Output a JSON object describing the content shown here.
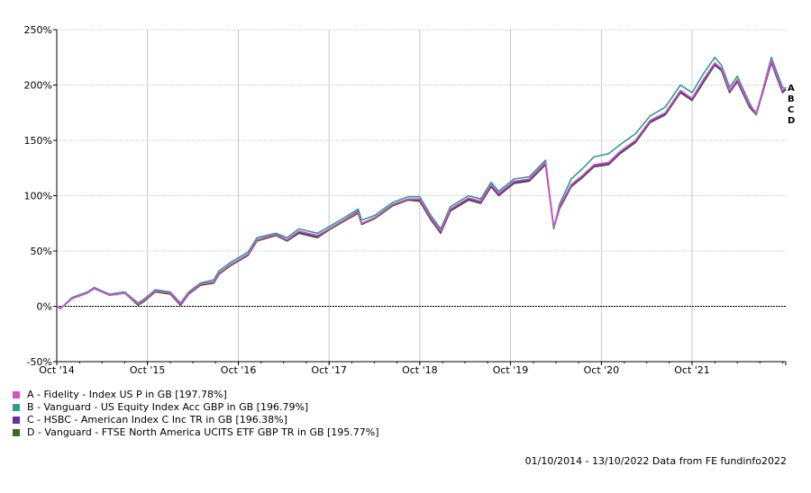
{
  "chart_data": {
    "type": "line",
    "title": "",
    "xlabel": "",
    "ylabel": "",
    "ylim": [
      -50,
      250
    ],
    "y_ticks": [
      -50,
      0,
      50,
      100,
      150,
      200,
      250
    ],
    "y_tick_labels": [
      "-50%",
      "0%",
      "50%",
      "100%",
      "150%",
      "200%",
      "250%"
    ],
    "x_ticks": [
      "2014-10-01",
      "2015-10-01",
      "2016-10-01",
      "2017-10-01",
      "2018-10-01",
      "2019-10-01",
      "2020-10-01",
      "2021-10-01"
    ],
    "x_tick_labels": [
      "Oct '14",
      "Oct '15",
      "Oct '16",
      "Oct '17",
      "Oct '18",
      "Oct '19",
      "Oct '20",
      "Oct '21"
    ],
    "xlim": [
      "2014-10-01",
      "2022-10-13"
    ],
    "grid": true,
    "zero_line": true,
    "legend_position": "bottom-left",
    "series": [
      {
        "name": "A - Fidelity - Index US P in GB [197.78%]",
        "label": "A",
        "color": "#d94fc9",
        "x": [
          "2014-10-01",
          "2014-10-16",
          "2014-12-01",
          "2015-02-01",
          "2015-03-01",
          "2015-05-01",
          "2015-07-01",
          "2015-08-24",
          "2015-09-15",
          "2015-11-01",
          "2016-01-01",
          "2016-02-11",
          "2016-03-15",
          "2016-05-01",
          "2016-06-24",
          "2016-07-15",
          "2016-09-01",
          "2016-11-09",
          "2016-12-15",
          "2017-03-01",
          "2017-04-15",
          "2017-06-01",
          "2017-08-15",
          "2017-10-01",
          "2017-12-01",
          "2018-01-26",
          "2018-02-09",
          "2018-04-01",
          "2018-06-15",
          "2018-08-15",
          "2018-10-01",
          "2018-11-15",
          "2018-12-24",
          "2019-02-01",
          "2019-04-15",
          "2019-06-03",
          "2019-07-15",
          "2019-08-15",
          "2019-10-15",
          "2019-12-15",
          "2020-02-19",
          "2020-03-23",
          "2020-04-15",
          "2020-06-01",
          "2020-07-15",
          "2020-09-01",
          "2020-10-30",
          "2020-12-15",
          "2021-02-15",
          "2021-04-15",
          "2021-06-15",
          "2021-08-15",
          "2021-10-01",
          "2021-11-15",
          "2021-12-31",
          "2022-01-27",
          "2022-03-01",
          "2022-04-01",
          "2022-05-20",
          "2022-06-16",
          "2022-08-16",
          "2022-09-30",
          "2022-10-13"
        ],
        "values": [
          0,
          -2,
          7,
          12,
          16,
          10,
          12,
          2,
          5,
          14,
          12,
          2,
          12,
          20,
          22,
          30,
          38,
          47,
          60,
          65,
          60,
          68,
          64,
          70,
          78,
          85,
          75,
          80,
          92,
          97,
          97,
          80,
          68,
          88,
          98,
          95,
          110,
          102,
          113,
          115,
          130,
          72,
          90,
          110,
          118,
          128,
          130,
          140,
          150,
          168,
          175,
          195,
          188,
          205,
          220,
          215,
          195,
          205,
          182,
          175,
          222,
          195,
          197.78
        ]
      },
      {
        "name": "B - Vanguard - US Equity Index Acc GBP in GB [196.79%]",
        "label": "B",
        "color": "#2e9c8f",
        "x": [
          "2014-10-01",
          "2014-10-16",
          "2014-12-01",
          "2015-02-01",
          "2015-03-01",
          "2015-05-01",
          "2015-07-01",
          "2015-08-24",
          "2015-09-15",
          "2015-11-01",
          "2016-01-01",
          "2016-02-11",
          "2016-03-15",
          "2016-05-01",
          "2016-06-24",
          "2016-07-15",
          "2016-09-01",
          "2016-11-09",
          "2016-12-15",
          "2017-03-01",
          "2017-04-15",
          "2017-06-01",
          "2017-08-15",
          "2017-10-01",
          "2017-12-01",
          "2018-01-26",
          "2018-02-09",
          "2018-04-01",
          "2018-06-15",
          "2018-08-15",
          "2018-10-01",
          "2018-11-15",
          "2018-12-24",
          "2019-02-01",
          "2019-04-15",
          "2019-06-03",
          "2019-07-15",
          "2019-08-15",
          "2019-10-15",
          "2019-12-15",
          "2020-02-19",
          "2020-03-23",
          "2020-04-15",
          "2020-06-01",
          "2020-07-15",
          "2020-09-01",
          "2020-10-30",
          "2020-12-15",
          "2021-02-15",
          "2021-04-15",
          "2021-06-15",
          "2021-08-15",
          "2021-10-01",
          "2021-11-15",
          "2021-12-31",
          "2022-01-27",
          "2022-03-01",
          "2022-04-01",
          "2022-05-20",
          "2022-06-16",
          "2022-08-16",
          "2022-09-30",
          "2022-10-13"
        ],
        "values": [
          0,
          -2,
          8,
          13,
          17,
          11,
          13,
          3,
          6,
          15,
          13,
          3,
          13,
          21,
          24,
          32,
          40,
          49,
          62,
          66,
          62,
          70,
          66,
          72,
          80,
          88,
          78,
          82,
          94,
          99,
          99,
          82,
          70,
          90,
          100,
          97,
          112,
          104,
          115,
          117,
          132,
          70,
          92,
          115,
          124,
          135,
          138,
          146,
          156,
          172,
          180,
          200,
          193,
          210,
          225,
          218,
          198,
          208,
          184,
          173,
          225,
          198,
          196.79
        ]
      },
      {
        "name": "C - HSBC - American Index C Inc TR in GB [196.38%]",
        "label": "C",
        "color": "#6a2aa8",
        "x": [
          "2014-10-01",
          "2014-10-16",
          "2014-12-01",
          "2015-02-01",
          "2015-03-01",
          "2015-05-01",
          "2015-07-01",
          "2015-08-24",
          "2015-09-15",
          "2015-11-01",
          "2016-01-01",
          "2016-02-11",
          "2016-03-15",
          "2016-05-01",
          "2016-06-24",
          "2016-07-15",
          "2016-09-01",
          "2016-11-09",
          "2016-12-15",
          "2017-03-01",
          "2017-04-15",
          "2017-06-01",
          "2017-08-15",
          "2017-10-01",
          "2017-12-01",
          "2018-01-26",
          "2018-02-09",
          "2018-04-01",
          "2018-06-15",
          "2018-08-15",
          "2018-10-01",
          "2018-11-15",
          "2018-12-24",
          "2019-02-01",
          "2019-04-15",
          "2019-06-03",
          "2019-07-15",
          "2019-08-15",
          "2019-10-15",
          "2019-12-15",
          "2020-02-19",
          "2020-03-23",
          "2020-04-15",
          "2020-06-01",
          "2020-07-15",
          "2020-09-01",
          "2020-10-30",
          "2020-12-15",
          "2021-02-15",
          "2021-04-15",
          "2021-06-15",
          "2021-08-15",
          "2021-10-01",
          "2021-11-15",
          "2021-12-31",
          "2022-01-27",
          "2022-03-01",
          "2022-04-01",
          "2022-05-20",
          "2022-06-16",
          "2022-08-16",
          "2022-09-30",
          "2022-10-13"
        ],
        "values": [
          0,
          -2,
          7,
          12,
          17,
          10,
          12,
          2,
          5,
          14,
          12,
          1,
          12,
          20,
          22,
          30,
          38,
          47,
          60,
          65,
          60,
          67,
          63,
          70,
          78,
          86,
          75,
          80,
          92,
          97,
          96,
          79,
          67,
          87,
          97,
          94,
          109,
          101,
          112,
          114,
          129,
          71,
          89,
          109,
          117,
          127,
          129,
          139,
          149,
          167,
          174,
          194,
          187,
          204,
          219,
          214,
          194,
          204,
          181,
          174,
          221,
          194,
          196.38
        ]
      },
      {
        "name": "D - Vanguard - FTSE North America UCITS ETF GBP TR in GB [195.77%]",
        "label": "D",
        "color": "#3a6b1e",
        "x": [
          "2014-10-01",
          "2014-10-16",
          "2014-12-01",
          "2015-02-01",
          "2015-03-01",
          "2015-05-01",
          "2015-07-01",
          "2015-08-24",
          "2015-09-15",
          "2015-11-01",
          "2016-01-01",
          "2016-02-11",
          "2016-03-15",
          "2016-05-01",
          "2016-06-24",
          "2016-07-15",
          "2016-09-01",
          "2016-11-09",
          "2016-12-15",
          "2017-03-01",
          "2017-04-15",
          "2017-06-01",
          "2017-08-15",
          "2017-10-01",
          "2017-12-01",
          "2018-01-26",
          "2018-02-09",
          "2018-04-01",
          "2018-06-15",
          "2018-08-15",
          "2018-10-01",
          "2018-11-15",
          "2018-12-24",
          "2019-02-01",
          "2019-04-15",
          "2019-06-03",
          "2019-07-15",
          "2019-08-15",
          "2019-10-15",
          "2019-12-15",
          "2020-02-19",
          "2020-03-23",
          "2020-04-15",
          "2020-06-01",
          "2020-07-15",
          "2020-09-01",
          "2020-10-30",
          "2020-12-15",
          "2021-02-15",
          "2021-04-15",
          "2021-06-15",
          "2021-08-15",
          "2021-10-01",
          "2021-11-15",
          "2021-12-31",
          "2022-01-27",
          "2022-03-01",
          "2022-04-01",
          "2022-05-20",
          "2022-06-16",
          "2022-08-16",
          "2022-09-30",
          "2022-10-13"
        ],
        "values": [
          0,
          -2,
          7,
          12,
          16,
          10,
          12,
          1,
          4,
          13,
          11,
          1,
          11,
          19,
          21,
          29,
          37,
          46,
          59,
          64,
          59,
          66,
          62,
          69,
          77,
          84,
          74,
          79,
          91,
          96,
          95,
          78,
          66,
          86,
          96,
          93,
          108,
          100,
          111,
          113,
          128,
          71,
          88,
          108,
          116,
          126,
          128,
          138,
          148,
          166,
          173,
          193,
          186,
          202,
          218,
          213,
          193,
          203,
          180,
          173,
          220,
          193,
          195.77
        ]
      }
    ]
  },
  "footer": {
    "text": "01/10/2014 - 13/10/2022 Data from FE fundinfo2022"
  }
}
